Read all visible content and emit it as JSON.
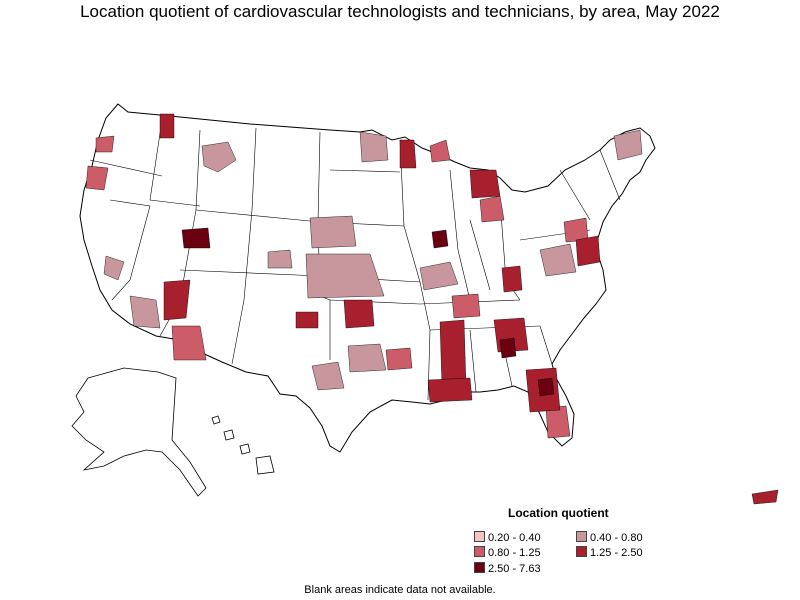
{
  "title": "Location quotient of cardiovascular technologists and technicians, by area, May 2022",
  "legend": {
    "title": "Location quotient",
    "items": [
      {
        "label": "0.20 - 0.40",
        "color": "#f3c3c8"
      },
      {
        "label": "0.40 - 0.80",
        "color": "#c8979d"
      },
      {
        "label": "0.80 - 1.25",
        "color": "#cc5c67"
      },
      {
        "label": "1.25 - 2.50",
        "color": "#a81f2e"
      },
      {
        "label": "2.50 - 7.63",
        "color": "#6b0010"
      }
    ]
  },
  "footnote": "Blank areas indicate data not available.",
  "colors": {
    "no_data": "#ffffff",
    "border": "#000000"
  }
}
